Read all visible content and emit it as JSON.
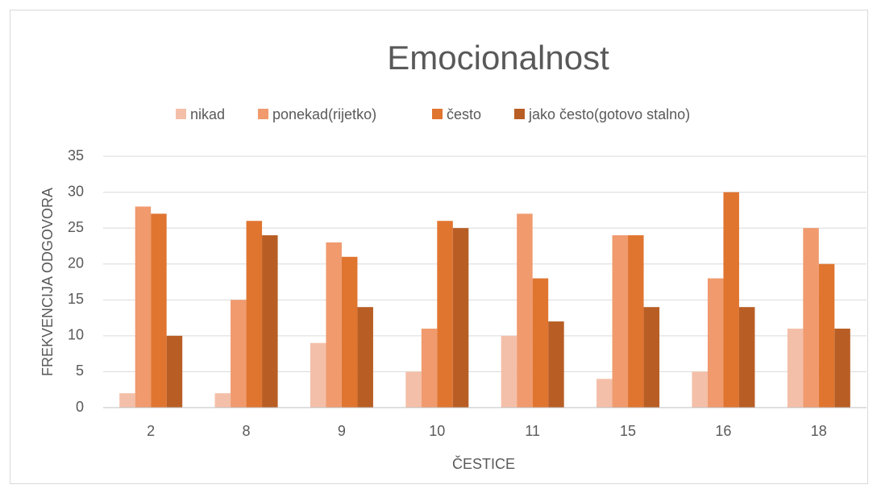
{
  "chart_data": {
    "type": "bar",
    "title": "Emocionalnost",
    "x_label": "ČESTICE",
    "y_label": "FREKVENCIJA ODGOVORA",
    "categories": [
      "2",
      "8",
      "9",
      "10",
      "11",
      "15",
      "16",
      "18"
    ],
    "series": [
      {
        "name": "nikad",
        "color": "#f4bfa8",
        "values": [
          2,
          2,
          9,
          5,
          10,
          4,
          5,
          11
        ]
      },
      {
        "name": "ponekad(rijetko)",
        "color": "#f09a6e",
        "values": [
          28,
          15,
          23,
          11,
          27,
          24,
          18,
          25
        ]
      },
      {
        "name": "često",
        "color": "#e07530",
        "values": [
          27,
          26,
          21,
          26,
          18,
          24,
          30,
          20
        ]
      },
      {
        "name": "jako često(gotovo stalno)",
        "color": "#b85e25",
        "values": [
          10,
          24,
          14,
          25,
          12,
          14,
          14,
          11
        ]
      }
    ],
    "ylim": [
      0,
      35
    ],
    "yticks": [
      0,
      5,
      10,
      15,
      20,
      25,
      30,
      35
    ],
    "grid": true,
    "legend": "top"
  }
}
